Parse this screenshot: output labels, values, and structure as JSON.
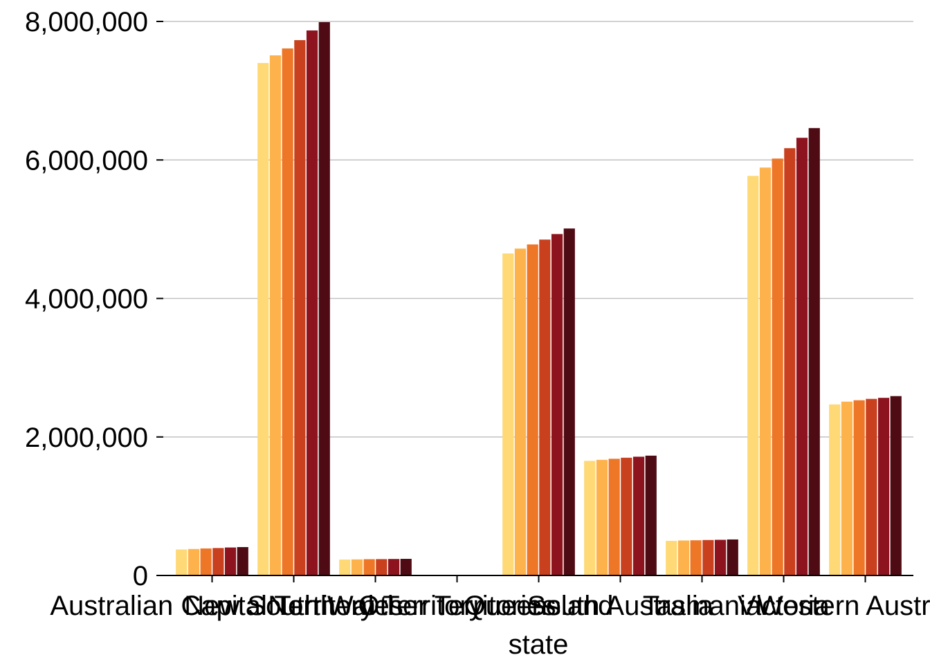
{
  "chart_data": {
    "type": "bar",
    "xlabel": "state",
    "ylabel": "",
    "ylim": [
      0,
      8000000
    ],
    "yticks": [
      0,
      2000000,
      4000000,
      6000000,
      8000000
    ],
    "ytick_labels": [
      "0",
      "2,000,000",
      "4,000,000",
      "6,000,000",
      "8,000,000"
    ],
    "grid": "horizontal",
    "legend": "none",
    "categories": [
      "Australian Capital Territory",
      "New South Wales",
      "Northern Territory",
      "Other Territories",
      "Queensland",
      "South Australia",
      "Tasmania",
      "Victoria",
      "Western Australia"
    ],
    "series_colors": [
      "#fed976",
      "#feb24c",
      "#ee7627",
      "#c8401e",
      "#8d141e",
      "#4f0b14"
    ],
    "series": [
      {
        "values": [
          375000,
          7400000,
          230000,
          4000,
          4650000,
          1655000,
          500000,
          5770000,
          2470000
        ]
      },
      {
        "values": [
          382000,
          7510000,
          232000,
          4100,
          4720000,
          1670000,
          505000,
          5890000,
          2510000
        ]
      },
      {
        "values": [
          390000,
          7610000,
          235000,
          4200,
          4780000,
          1685000,
          508000,
          6020000,
          2530000
        ]
      },
      {
        "values": [
          396000,
          7730000,
          236000,
          4300,
          4850000,
          1700000,
          512000,
          6170000,
          2550000
        ]
      },
      {
        "values": [
          404000,
          7870000,
          238000,
          4400,
          4930000,
          1715000,
          515000,
          6320000,
          2565000
        ]
      },
      {
        "values": [
          410000,
          7990000,
          240000,
          4500,
          5010000,
          1730000,
          520000,
          6460000,
          2590000
        ]
      }
    ]
  }
}
